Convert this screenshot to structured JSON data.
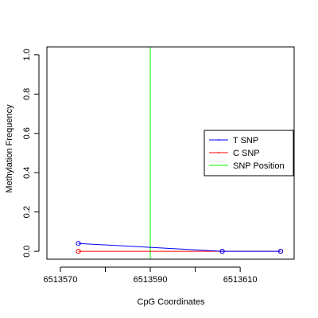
{
  "chart_data": {
    "type": "line",
    "xlabel": "CpG Coordinates",
    "ylabel": "Methylation Frequency",
    "xlim": [
      6513567,
      6513622
    ],
    "ylim": [
      -0.04,
      1.04
    ],
    "xticks": [
      6513570,
      6513590,
      6513610
    ],
    "yticks": [
      0.0,
      0.2,
      0.4,
      0.6,
      0.8,
      1.0
    ],
    "xtick_labels": [
      "6513570",
      "6513590",
      "6513610"
    ],
    "ytick_labels": [
      "0.0",
      "0.2",
      "0.4",
      "0.6",
      "0.8",
      "1.0"
    ],
    "series": [
      {
        "name": "T SNP",
        "color": "#0000ff",
        "x": [
          6513574,
          6513606,
          6513619
        ],
        "y": [
          0.04,
          0.0,
          0.0
        ]
      },
      {
        "name": "C SNP",
        "color": "#ff0000",
        "x": [
          6513574,
          6513606,
          6513619
        ],
        "y": [
          0.0,
          0.0,
          0.0
        ]
      }
    ],
    "snp_position": {
      "name": "SNP Position",
      "x": 6513590,
      "color": "#00ff00"
    },
    "legend": {
      "placement": "right",
      "entries": [
        "T SNP",
        "C SNP",
        "SNP Position"
      ]
    },
    "grid": false
  }
}
